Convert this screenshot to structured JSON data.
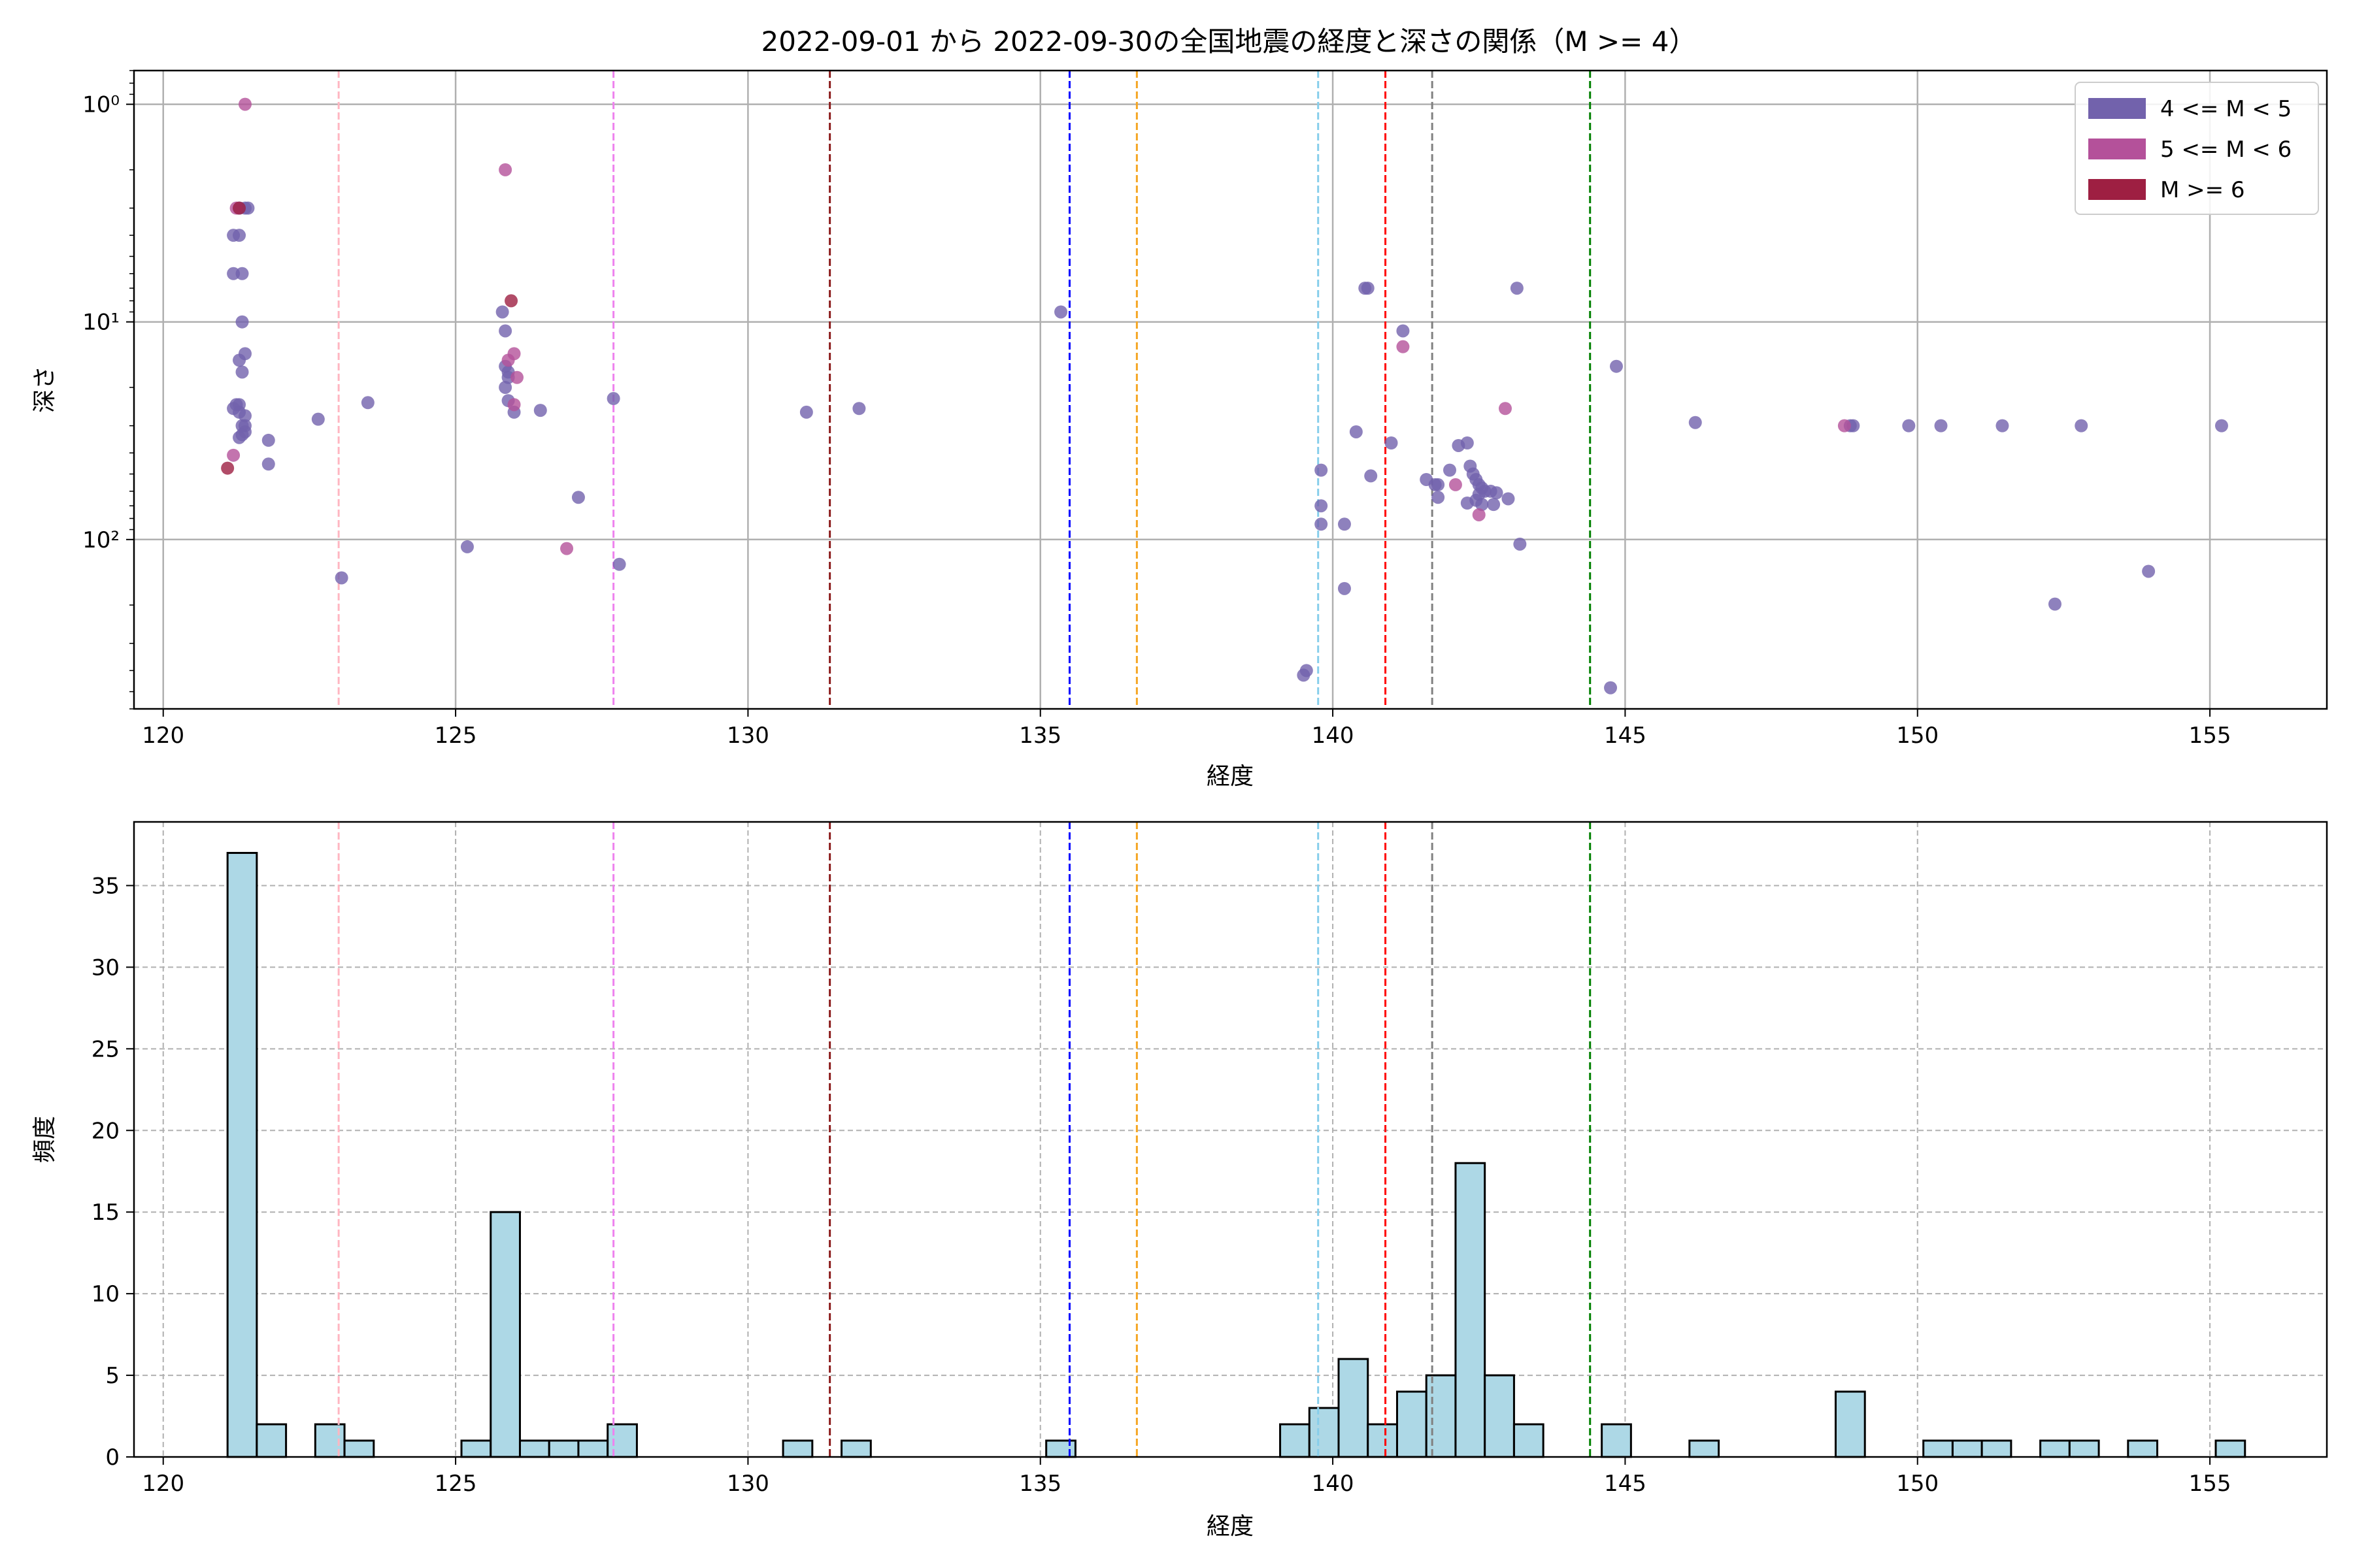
{
  "figure": {
    "title": "2022-09-01 から 2022-09-30の全国地震の経度と深さの関係（M >= 4）"
  },
  "chart_data": [
    {
      "type": "scatter",
      "xlabel": "経度",
      "ylabel": "深さ",
      "xlim": [
        119.5,
        157.0
      ],
      "ylim": [
        600,
        0.7
      ],
      "yscale": "log",
      "y_inverted": true,
      "grid": true,
      "x_ticks": [
        120,
        125,
        130,
        135,
        140,
        145,
        150,
        155
      ],
      "y_ticks": [
        {
          "value": 1,
          "label": "10⁰"
        },
        {
          "value": 10,
          "label": "10¹"
        },
        {
          "value": 100,
          "label": "10²"
        }
      ],
      "legend": {
        "placement": "top-right",
        "entries": [
          {
            "label": "4 <= M < 5",
            "color": "#7262ac"
          },
          {
            "label": "5 <= M < 6",
            "color": "#b4519a"
          },
          {
            "label": "M >= 6",
            "color": "#9e1f42"
          }
        ]
      },
      "vlines": [
        {
          "x": 123.0,
          "color": "#ffb6c1"
        },
        {
          "x": 127.7,
          "color": "#ee82ee"
        },
        {
          "x": 131.4,
          "color": "#8b1a1a"
        },
        {
          "x": 135.5,
          "color": "#0000ff"
        },
        {
          "x": 136.65,
          "color": "#f5a623"
        },
        {
          "x": 139.75,
          "color": "#87ceeb"
        },
        {
          "x": 140.9,
          "color": "#ff0000"
        },
        {
          "x": 141.7,
          "color": "#808080"
        },
        {
          "x": 144.4,
          "color": "#008000"
        }
      ],
      "series": [
        {
          "name": "4 <= M < 5",
          "color": "#7262ac",
          "points": [
            [
              121.2,
              4
            ],
            [
              121.3,
              4
            ],
            [
              121.35,
              6
            ],
            [
              121.3,
              3
            ],
            [
              121.4,
              3
            ],
            [
              121.45,
              3
            ],
            [
              121.2,
              6
            ],
            [
              121.35,
              10
            ],
            [
              121.3,
              15
            ],
            [
              121.4,
              14
            ],
            [
              121.35,
              17
            ],
            [
              121.25,
              24
            ],
            [
              121.3,
              24
            ],
            [
              121.4,
              27
            ],
            [
              121.2,
              25
            ],
            [
              121.3,
              26
            ],
            [
              121.4,
              30
            ],
            [
              121.35,
              33
            ],
            [
              121.3,
              34
            ],
            [
              121.35,
              30
            ],
            [
              121.4,
              32
            ],
            [
              121.8,
              35
            ],
            [
              121.8,
              45
            ],
            [
              122.65,
              28
            ],
            [
              123.5,
              23.5
            ],
            [
              123.05,
              150
            ],
            [
              125.2,
              108
            ],
            [
              125.8,
              9
            ],
            [
              125.85,
              11
            ],
            [
              125.85,
              16
            ],
            [
              125.9,
              17
            ],
            [
              125.9,
              18
            ],
            [
              125.85,
              20
            ],
            [
              125.9,
              23
            ],
            [
              126.0,
              26
            ],
            [
              126.45,
              25.5
            ],
            [
              127.1,
              64
            ],
            [
              127.7,
              22.5
            ],
            [
              127.8,
              130
            ],
            [
              131.0,
              26
            ],
            [
              131.9,
              25
            ],
            [
              135.35,
              9
            ],
            [
              139.5,
              420
            ],
            [
              139.55,
              400
            ],
            [
              139.8,
              48
            ],
            [
              139.8,
              70
            ],
            [
              139.8,
              85
            ],
            [
              140.2,
              85
            ],
            [
              140.2,
              168
            ],
            [
              140.4,
              32
            ],
            [
              140.55,
              7
            ],
            [
              140.6,
              7
            ],
            [
              140.65,
              51
            ],
            [
              141.0,
              36
            ],
            [
              141.2,
              11
            ],
            [
              141.6,
              53
            ],
            [
              141.8,
              56
            ],
            [
              141.75,
              56
            ],
            [
              141.8,
              64
            ],
            [
              142.0,
              48
            ],
            [
              142.15,
              37
            ],
            [
              142.3,
              36
            ],
            [
              142.35,
              46
            ],
            [
              142.4,
              50
            ],
            [
              142.45,
              53
            ],
            [
              142.5,
              56
            ],
            [
              142.55,
              58
            ],
            [
              142.6,
              60
            ],
            [
              142.5,
              62
            ],
            [
              142.45,
              66
            ],
            [
              142.55,
              69
            ],
            [
              142.3,
              68
            ],
            [
              142.7,
              60
            ],
            [
              142.8,
              61
            ],
            [
              143.0,
              65
            ],
            [
              142.75,
              69
            ],
            [
              143.15,
              7
            ],
            [
              143.2,
              105
            ],
            [
              144.75,
              480
            ],
            [
              144.85,
              16
            ],
            [
              146.2,
              29
            ],
            [
              148.85,
              30
            ],
            [
              148.9,
              30
            ],
            [
              149.85,
              30
            ],
            [
              150.4,
              30
            ],
            [
              151.45,
              30
            ],
            [
              152.8,
              30
            ],
            [
              155.2,
              30
            ],
            [
              152.35,
              198
            ],
            [
              153.95,
              140
            ]
          ]
        },
        {
          "name": "5 <= M < 6",
          "color": "#b4519a",
          "points": [
            [
              121.4,
              1
            ],
            [
              121.25,
              3
            ],
            [
              121.2,
              41
            ],
            [
              125.85,
              2
            ],
            [
              125.9,
              15
            ],
            [
              126.0,
              14
            ],
            [
              126.05,
              18
            ],
            [
              126.0,
              24
            ],
            [
              126.9,
              110
            ],
            [
              141.2,
              13
            ],
            [
              142.1,
              56
            ],
            [
              142.5,
              77
            ],
            [
              142.95,
              25
            ],
            [
              148.75,
              30
            ]
          ]
        },
        {
          "name": "M >= 6",
          "color": "#9e1f42",
          "points": [
            [
              121.3,
              3
            ],
            [
              121.1,
              47
            ],
            [
              125.95,
              8
            ]
          ]
        }
      ]
    },
    {
      "type": "bar",
      "xlabel": "経度",
      "ylabel": "頻度",
      "xlim": [
        119.5,
        157.0
      ],
      "ylim": [
        0,
        38.9
      ],
      "grid": true,
      "x_ticks": [
        120,
        125,
        130,
        135,
        140,
        145,
        150,
        155
      ],
      "y_ticks": [
        0,
        5,
        10,
        15,
        20,
        25,
        30,
        35
      ],
      "bar_color": "#add8e6",
      "bin_width": 0.5,
      "vlines": [
        {
          "x": 123.0,
          "color": "#ffb6c1"
        },
        {
          "x": 127.7,
          "color": "#ee82ee"
        },
        {
          "x": 131.4,
          "color": "#8b1a1a"
        },
        {
          "x": 135.5,
          "color": "#0000ff"
        },
        {
          "x": 136.65,
          "color": "#f5a623"
        },
        {
          "x": 139.75,
          "color": "#87ceeb"
        },
        {
          "x": 140.9,
          "color": "#ff0000"
        },
        {
          "x": 141.7,
          "color": "#808080"
        },
        {
          "x": 144.4,
          "color": "#008000"
        }
      ],
      "bins": [
        {
          "x0": 121.1,
          "x1": 121.6,
          "value": 37
        },
        {
          "x0": 121.6,
          "x1": 122.1,
          "value": 2
        },
        {
          "x0": 122.6,
          "x1": 123.1,
          "value": 2
        },
        {
          "x0": 123.1,
          "x1": 123.6,
          "value": 1
        },
        {
          "x0": 125.1,
          "x1": 125.6,
          "value": 1
        },
        {
          "x0": 125.6,
          "x1": 126.1,
          "value": 15
        },
        {
          "x0": 126.1,
          "x1": 126.6,
          "value": 1
        },
        {
          "x0": 126.6,
          "x1": 127.1,
          "value": 1
        },
        {
          "x0": 127.1,
          "x1": 127.6,
          "value": 1
        },
        {
          "x0": 127.6,
          "x1": 128.1,
          "value": 2
        },
        {
          "x0": 130.6,
          "x1": 131.1,
          "value": 1
        },
        {
          "x0": 131.6,
          "x1": 132.1,
          "value": 1
        },
        {
          "x0": 135.1,
          "x1": 135.6,
          "value": 1
        },
        {
          "x0": 139.1,
          "x1": 139.6,
          "value": 2
        },
        {
          "x0": 139.6,
          "x1": 140.1,
          "value": 3
        },
        {
          "x0": 140.1,
          "x1": 140.6,
          "value": 6
        },
        {
          "x0": 140.6,
          "x1": 141.1,
          "value": 2
        },
        {
          "x0": 141.1,
          "x1": 141.6,
          "value": 4
        },
        {
          "x0": 141.6,
          "x1": 142.1,
          "value": 5
        },
        {
          "x0": 142.1,
          "x1": 142.6,
          "value": 18
        },
        {
          "x0": 142.6,
          "x1": 143.1,
          "value": 5
        },
        {
          "x0": 143.1,
          "x1": 143.6,
          "value": 2
        },
        {
          "x0": 144.6,
          "x1": 145.1,
          "value": 2
        },
        {
          "x0": 146.1,
          "x1": 146.6,
          "value": 1
        },
        {
          "x0": 148.6,
          "x1": 149.1,
          "value": 4
        },
        {
          "x0": 150.1,
          "x1": 150.6,
          "value": 1
        },
        {
          "x0": 150.6,
          "x1": 151.1,
          "value": 1
        },
        {
          "x0": 151.1,
          "x1": 151.6,
          "value": 1
        },
        {
          "x0": 152.1,
          "x1": 152.6,
          "value": 1
        },
        {
          "x0": 152.6,
          "x1": 153.1,
          "value": 1
        },
        {
          "x0": 153.6,
          "x1": 154.1,
          "value": 1
        },
        {
          "x0": 155.1,
          "x1": 155.6,
          "value": 1
        }
      ]
    }
  ]
}
